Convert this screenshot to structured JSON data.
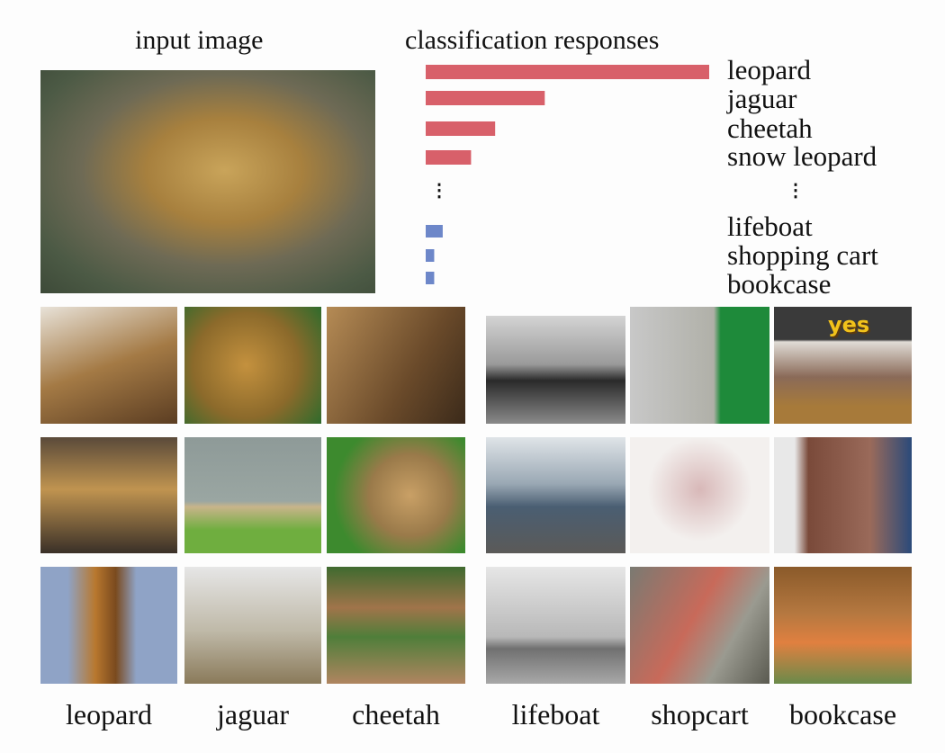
{
  "titles": {
    "input": "input image",
    "responses": "classification responses"
  },
  "chart_data": {
    "type": "bar",
    "orientation": "horizontal",
    "title": "classification responses",
    "categories": [
      "leopard",
      "jaguar",
      "cheetah",
      "snow leopard",
      "lifeboat",
      "shopping cart",
      "bookcase"
    ],
    "values": [
      1.0,
      0.42,
      0.245,
      0.16,
      0.06,
      0.03,
      0.03
    ],
    "colors": [
      "#d8606a",
      "#d8606a",
      "#d8606a",
      "#d8606a",
      "#6d87c9",
      "#6d87c9",
      "#6d87c9"
    ],
    "ellipsis": "⋮",
    "grid": false
  },
  "grid_images": {
    "captions": [
      "leopard",
      "jaguar",
      "cheetah",
      "lifeboat",
      "shopcart",
      "bookcase"
    ],
    "bookcase_sign": "yes"
  }
}
